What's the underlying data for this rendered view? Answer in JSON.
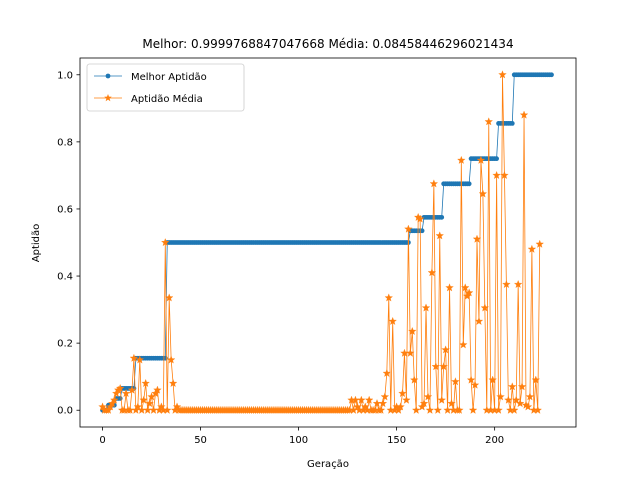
{
  "chart_data": {
    "type": "line",
    "title": "Melhor: 0.9999768847047668 Média: 0.08458446296021434",
    "xlabel": "Geração",
    "ylabel": "Aptidão",
    "xlim": [
      -11.5,
      241.5
    ],
    "ylim": [
      -0.05,
      1.05
    ],
    "xticks": [
      0,
      50,
      100,
      150,
      200
    ],
    "yticks": [
      0.0,
      0.2,
      0.4,
      0.6,
      0.8,
      1.0
    ],
    "ytick_labels": [
      "0.0",
      "0.2",
      "0.4",
      "0.6",
      "0.8",
      "1.0"
    ],
    "legend": "top-left",
    "series": [
      {
        "name": "Melhor Aptidão",
        "color": "#1f77b4",
        "marker": "point",
        "segments": [
          {
            "x_start": 0,
            "x_end": 2,
            "value": 0.0
          },
          {
            "x_start": 3,
            "x_end": 6,
            "value": 0.015
          },
          {
            "x_start": 7,
            "x_end": 9,
            "value": 0.035
          },
          {
            "x_start": 10,
            "x_end": 16,
            "value": 0.065
          },
          {
            "x_start": 17,
            "x_end": 32,
            "value": 0.155
          },
          {
            "x_start": 33,
            "x_end": 156,
            "value": 0.5
          },
          {
            "x_start": 157,
            "x_end": 163,
            "value": 0.535
          },
          {
            "x_start": 164,
            "x_end": 173,
            "value": 0.575
          },
          {
            "x_start": 174,
            "x_end": 187,
            "value": 0.675
          },
          {
            "x_start": 188,
            "x_end": 201,
            "value": 0.75
          },
          {
            "x_start": 202,
            "x_end": 209,
            "value": 0.855
          },
          {
            "x_start": 210,
            "x_end": 229,
            "value": 1.0
          }
        ]
      },
      {
        "name": "Aptidão Média",
        "color": "#ff7f0e",
        "marker": "star",
        "points": [
          [
            0,
            0.01
          ],
          [
            1,
            0.0
          ],
          [
            2,
            0.0
          ],
          [
            3,
            0.0
          ],
          [
            4,
            0.01
          ],
          [
            5,
            0.02
          ],
          [
            6,
            0.03
          ],
          [
            7,
            0.05
          ],
          [
            8,
            0.06
          ],
          [
            9,
            0.065
          ],
          [
            10,
            0.0
          ],
          [
            11,
            0.0
          ],
          [
            12,
            0.05
          ],
          [
            13,
            0.0
          ],
          [
            14,
            0.0
          ],
          [
            15,
            0.06
          ],
          [
            16,
            0.155
          ],
          [
            17,
            0.0
          ],
          [
            18,
            0.01
          ],
          [
            19,
            0.15
          ],
          [
            20,
            0.0
          ],
          [
            21,
            0.03
          ],
          [
            22,
            0.08
          ],
          [
            23,
            0.0
          ],
          [
            24,
            0.02
          ],
          [
            25,
            0.04
          ],
          [
            26,
            0.0
          ],
          [
            27,
            0.05
          ],
          [
            28,
            0.06
          ],
          [
            29,
            0.0
          ],
          [
            30,
            0.01
          ],
          [
            31,
            0.0
          ],
          [
            32,
            0.5
          ],
          [
            33,
            0.0
          ],
          [
            34,
            0.335
          ],
          [
            35,
            0.15
          ],
          [
            36,
            0.08
          ],
          [
            37,
            0.0
          ],
          [
            38,
            0.01
          ],
          [
            39,
            0.0
          ],
          [
            40,
            0.0
          ],
          [
            41,
            0.0
          ],
          [
            42,
            0.0
          ],
          [
            43,
            0.0
          ],
          [
            44,
            0.0
          ],
          [
            45,
            0.0
          ],
          [
            46,
            0.0
          ],
          [
            47,
            0.0
          ],
          [
            48,
            0.0
          ],
          [
            49,
            0.0
          ],
          [
            50,
            0.0
          ],
          [
            51,
            0.0
          ],
          [
            52,
            0.0
          ],
          [
            53,
            0.0
          ],
          [
            54,
            0.0
          ],
          [
            55,
            0.0
          ],
          [
            56,
            0.0
          ],
          [
            57,
            0.0
          ],
          [
            58,
            0.0
          ],
          [
            59,
            0.0
          ],
          [
            60,
            0.0
          ],
          [
            61,
            0.0
          ],
          [
            62,
            0.0
          ],
          [
            63,
            0.0
          ],
          [
            64,
            0.0
          ],
          [
            65,
            0.0
          ],
          [
            66,
            0.0
          ],
          [
            67,
            0.0
          ],
          [
            68,
            0.0
          ],
          [
            69,
            0.0
          ],
          [
            70,
            0.0
          ],
          [
            71,
            0.0
          ],
          [
            72,
            0.0
          ],
          [
            73,
            0.0
          ],
          [
            74,
            0.0
          ],
          [
            75,
            0.0
          ],
          [
            76,
            0.0
          ],
          [
            77,
            0.0
          ],
          [
            78,
            0.0
          ],
          [
            79,
            0.0
          ],
          [
            80,
            0.0
          ],
          [
            81,
            0.0
          ],
          [
            82,
            0.0
          ],
          [
            83,
            0.0
          ],
          [
            84,
            0.0
          ],
          [
            85,
            0.0
          ],
          [
            86,
            0.0
          ],
          [
            87,
            0.0
          ],
          [
            88,
            0.0
          ],
          [
            89,
            0.0
          ],
          [
            90,
            0.0
          ],
          [
            91,
            0.0
          ],
          [
            92,
            0.0
          ],
          [
            93,
            0.0
          ],
          [
            94,
            0.0
          ],
          [
            95,
            0.0
          ],
          [
            96,
            0.0
          ],
          [
            97,
            0.0
          ],
          [
            98,
            0.0
          ],
          [
            99,
            0.0
          ],
          [
            100,
            0.0
          ],
          [
            101,
            0.0
          ],
          [
            102,
            0.0
          ],
          [
            103,
            0.0
          ],
          [
            104,
            0.0
          ],
          [
            105,
            0.0
          ],
          [
            106,
            0.0
          ],
          [
            107,
            0.0
          ],
          [
            108,
            0.0
          ],
          [
            109,
            0.0
          ],
          [
            110,
            0.0
          ],
          [
            111,
            0.0
          ],
          [
            112,
            0.0
          ],
          [
            113,
            0.0
          ],
          [
            114,
            0.0
          ],
          [
            115,
            0.0
          ],
          [
            116,
            0.0
          ],
          [
            117,
            0.0
          ],
          [
            118,
            0.0
          ],
          [
            119,
            0.0
          ],
          [
            120,
            0.0
          ],
          [
            121,
            0.0
          ],
          [
            122,
            0.0
          ],
          [
            123,
            0.0
          ],
          [
            124,
            0.0
          ],
          [
            125,
            0.0
          ],
          [
            126,
            0.0
          ],
          [
            127,
            0.03
          ],
          [
            128,
            0.0
          ],
          [
            129,
            0.03
          ],
          [
            130,
            0.01
          ],
          [
            131,
            0.0
          ],
          [
            132,
            0.03
          ],
          [
            133,
            0.0
          ],
          [
            134,
            0.01
          ],
          [
            135,
            0.0
          ],
          [
            136,
            0.03
          ],
          [
            137,
            0.0
          ],
          [
            138,
            0.0
          ],
          [
            139,
            0.0
          ],
          [
            140,
            0.02
          ],
          [
            141,
            0.0
          ],
          [
            142,
            0.0
          ],
          [
            143,
            0.02
          ],
          [
            144,
            0.04
          ],
          [
            145,
            0.11
          ],
          [
            146,
            0.335
          ],
          [
            147,
            0.0
          ],
          [
            148,
            0.265
          ],
          [
            149,
            0.0
          ],
          [
            150,
            0.01
          ],
          [
            151,
            0.0
          ],
          [
            152,
            0.01
          ],
          [
            153,
            0.05
          ],
          [
            154,
            0.17
          ],
          [
            155,
            0.03
          ],
          [
            156,
            0.54
          ],
          [
            157,
            0.17
          ],
          [
            158,
            0.235
          ],
          [
            159,
            0.09
          ],
          [
            160,
            0.0
          ],
          [
            161,
            0.575
          ],
          [
            162,
            0.57
          ],
          [
            163,
            0.01
          ],
          [
            164,
            0.02
          ],
          [
            165,
            0.305
          ],
          [
            166,
            0.04
          ],
          [
            167,
            0.0
          ],
          [
            168,
            0.41
          ],
          [
            169,
            0.675
          ],
          [
            170,
            0.13
          ],
          [
            171,
            0.0
          ],
          [
            172,
            0.52
          ],
          [
            173,
            0.03
          ],
          [
            174,
            0.13
          ],
          [
            175,
            0.18
          ],
          [
            176,
            0.0
          ],
          [
            177,
            0.365
          ],
          [
            178,
            0.02
          ],
          [
            179,
            0.0
          ],
          [
            180,
            0.085
          ],
          [
            181,
            0.0
          ],
          [
            182,
            0.0
          ],
          [
            183,
            0.745
          ],
          [
            184,
            0.195
          ],
          [
            185,
            0.365
          ],
          [
            186,
            0.34
          ],
          [
            187,
            0.35
          ],
          [
            188,
            0.09
          ],
          [
            189,
            0.0
          ],
          [
            190,
            0.075
          ],
          [
            191,
            0.51
          ],
          [
            192,
            0.265
          ],
          [
            193,
            0.745
          ],
          [
            194,
            0.645
          ],
          [
            195,
            0.305
          ],
          [
            196,
            0.0
          ],
          [
            197,
            0.86
          ],
          [
            198,
            0.0
          ],
          [
            199,
            0.09
          ],
          [
            200,
            0.0
          ],
          [
            201,
            0.7
          ],
          [
            202,
            0.0
          ],
          [
            203,
            0.04
          ],
          [
            204,
            1.0
          ],
          [
            205,
            0.7
          ],
          [
            206,
            0.375
          ],
          [
            207,
            0.03
          ],
          [
            208,
            0.0
          ],
          [
            209,
            0.07
          ],
          [
            210,
            0.0
          ],
          [
            211,
            0.03
          ],
          [
            212,
            0.375
          ],
          [
            213,
            0.02
          ],
          [
            214,
            0.07
          ],
          [
            215,
            0.88
          ],
          [
            216,
            0.015
          ],
          [
            217,
            0.01
          ],
          [
            218,
            0.04
          ],
          [
            219,
            0.48
          ],
          [
            220,
            0.0
          ],
          [
            221,
            0.09
          ],
          [
            222,
            0.0
          ],
          [
            223,
            0.495
          ]
        ]
      }
    ]
  }
}
